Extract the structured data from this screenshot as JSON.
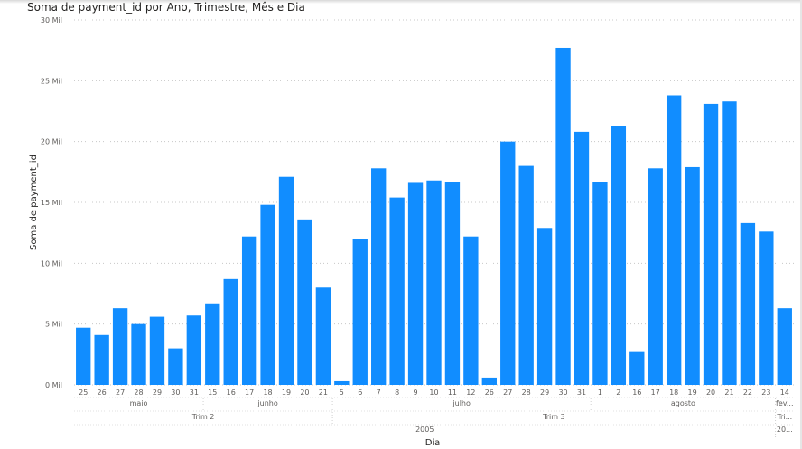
{
  "chart_data": {
    "type": "bar",
    "title": "Soma de payment_id por Ano, Trimestre, Mês e Dia",
    "xlabel": "Dia",
    "ylabel": "Soma de payment_id",
    "ylim": [
      0,
      30000
    ],
    "yticks": [
      {
        "value": 0,
        "label": "0 Mil"
      },
      {
        "value": 5000,
        "label": "5 Mil"
      },
      {
        "value": 10000,
        "label": "10 Mil"
      },
      {
        "value": 15000,
        "label": "15 Mil"
      },
      {
        "value": 20000,
        "label": "20 Mil"
      },
      {
        "value": 25000,
        "label": "25 Mil"
      },
      {
        "value": 30000,
        "label": "30 Mil"
      }
    ],
    "gridlines": true,
    "bar_color": "#118DFF",
    "categories": [
      "25",
      "26",
      "27",
      "28",
      "29",
      "30",
      "31",
      "15",
      "16",
      "17",
      "18",
      "19",
      "20",
      "21",
      "5",
      "6",
      "7",
      "8",
      "9",
      "10",
      "11",
      "12",
      "26",
      "27",
      "28",
      "29",
      "30",
      "31",
      "1",
      "2",
      "16",
      "17",
      "18",
      "19",
      "20",
      "21",
      "22",
      "23",
      "14"
    ],
    "values": [
      4700,
      4100,
      6300,
      5000,
      5600,
      3000,
      5700,
      6700,
      8700,
      12200,
      14800,
      17100,
      13600,
      8000,
      300,
      12000,
      17800,
      15400,
      16600,
      16800,
      16700,
      12200,
      600,
      20000,
      18000,
      12900,
      27700,
      20800,
      16700,
      21300,
      2700,
      17800,
      23800,
      17900,
      23100,
      23300,
      13300,
      12600,
      6300
    ],
    "hierarchy": {
      "month": [
        {
          "label": "maio",
          "span": 7
        },
        {
          "label": "junho",
          "span": 7
        },
        {
          "label": "julho",
          "span": 14
        },
        {
          "label": "agosto",
          "span": 10
        },
        {
          "label": "fev...",
          "span": 1
        }
      ],
      "quarter": [
        {
          "label": "Trim 2",
          "span": 14
        },
        {
          "label": "Trim 3",
          "span": 24
        },
        {
          "label": "Tri...",
          "span": 1
        }
      ],
      "year": [
        {
          "label": "2005",
          "span": 38
        },
        {
          "label": "20...",
          "span": 1
        }
      ]
    }
  }
}
